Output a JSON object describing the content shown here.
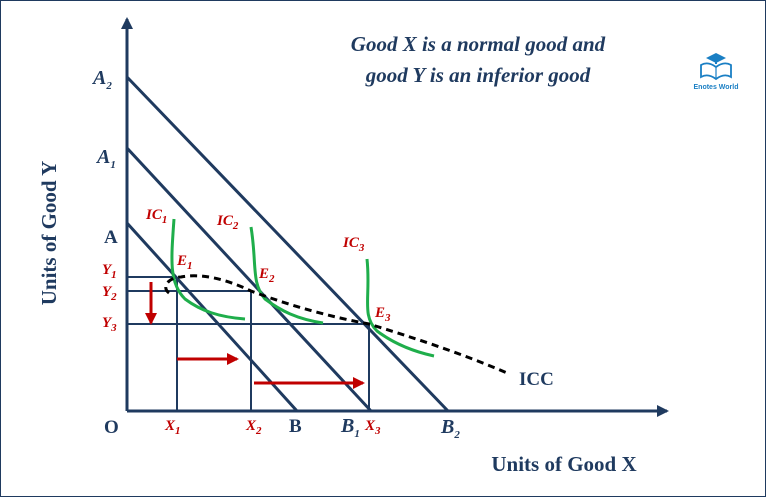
{
  "title": {
    "line1": "Good X is a normal  good and",
    "line2": "good Y is an inferior good"
  },
  "logo": {
    "text": "Enotes World",
    "icon": "book-graduation-cap-icon"
  },
  "axes": {
    "y_label": "Units of Good Y",
    "x_label": "Units of Good X",
    "origin": "O"
  },
  "y_points": [
    {
      "main": "A",
      "sub": "2"
    },
    {
      "main": "A",
      "sub": "1"
    },
    {
      "main": "A",
      "sub": ""
    }
  ],
  "x_points": [
    {
      "main": "B",
      "sub": ""
    },
    {
      "main": "B",
      "sub": "1"
    },
    {
      "main": "B",
      "sub": "2"
    }
  ],
  "y_levels": [
    {
      "main": "Y",
      "sub": "1"
    },
    {
      "main": "Y",
      "sub": "2"
    },
    {
      "main": "Y",
      "sub": "3"
    }
  ],
  "x_levels": [
    {
      "main": "X",
      "sub": "1"
    },
    {
      "main": "X",
      "sub": "2"
    },
    {
      "main": "X",
      "sub": "3"
    }
  ],
  "indifference_curves": [
    {
      "main": "IC",
      "sub": "1"
    },
    {
      "main": "IC",
      "sub": "2"
    },
    {
      "main": "IC",
      "sub": "3"
    }
  ],
  "equilibria": [
    {
      "main": "E",
      "sub": "1"
    },
    {
      "main": "E",
      "sub": "2"
    },
    {
      "main": "E",
      "sub": "3"
    }
  ],
  "icc_label": "ICC",
  "colors": {
    "axis": "#1f3a5f",
    "indifference_curve": "#1fae4b",
    "arrow": "#c00000",
    "label_red": "#c00000",
    "brand": "#1a7fc4"
  }
}
